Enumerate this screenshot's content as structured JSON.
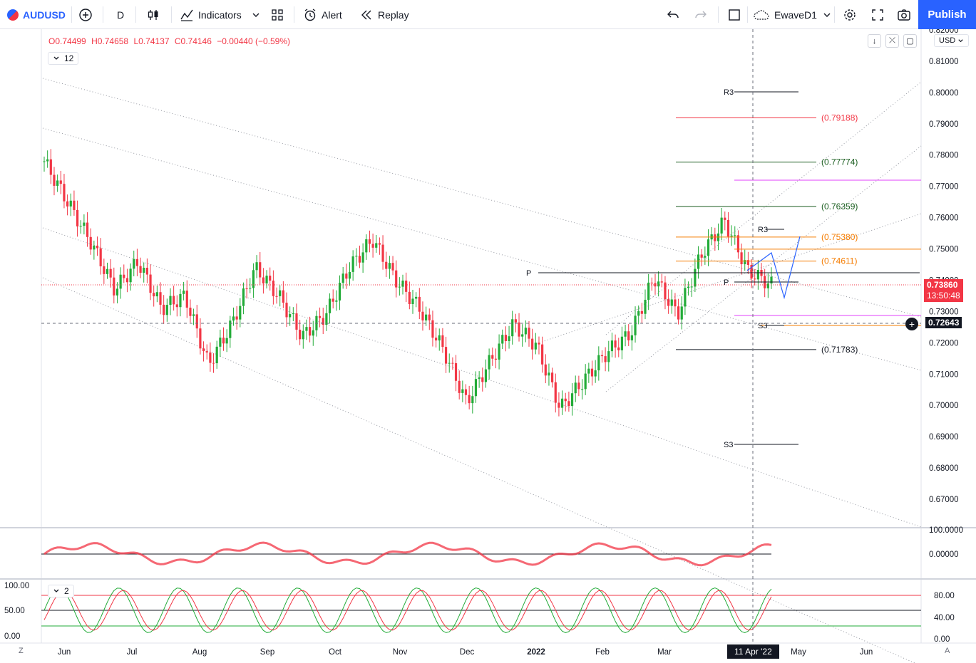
{
  "toolbar": {
    "symbol": "AUDUSD",
    "interval": "D",
    "indicators_label": "Indicators",
    "alert_label": "Alert",
    "replay_label": "Replay",
    "layout_name": "EwaveD1",
    "publish_label": "Publish"
  },
  "legend": {
    "open": "O0.74499",
    "high": "H0.74658",
    "low": "L0.74137",
    "close": "C0.74146",
    "change": "−0.00440 (−0.59%)",
    "hidden_count": "12",
    "osc_count": "2"
  },
  "price_axis": {
    "currency": "USD",
    "last_price": "0.73860",
    "countdown": "13:50:48",
    "crosshair_price": "0.72643",
    "ticks": [
      "0.82000",
      "0.81000",
      "0.80000",
      "0.79000",
      "0.78000",
      "0.77000",
      "0.76000",
      "0.75000",
      "0.74000",
      "0.73000",
      "0.72000",
      "0.71000",
      "0.70000",
      "0.69000",
      "0.68000",
      "0.67000"
    ]
  },
  "time_axis": {
    "labels": [
      "Jun",
      "Jul",
      "Aug",
      "Sep",
      "Oct",
      "Nov",
      "Dec",
      "2022",
      "Feb",
      "Mar",
      "Apr",
      "May",
      "Jun"
    ],
    "crosshair_date": "11 Apr '22",
    "left_btn": "Z",
    "right_btn": "A"
  },
  "pane2_axis": {
    "ticks": [
      "100.0000",
      "0.00000"
    ]
  },
  "pane3_axis": {
    "left_ticks": [
      "100.00",
      "50.00",
      "0.00"
    ],
    "right_ticks": [
      "80.00",
      "40.00",
      "0.00"
    ]
  },
  "annotations": {
    "r3_top": "R3",
    "fib_1": "(0.79188)",
    "fib_2": "(0.77774)",
    "fib_3": "(0.76359)",
    "fib_4": "(0.75380)",
    "fib_5": "(0.74611)",
    "fib_6": "(0.71783)",
    "pivot_p": "P",
    "pivot_p2": "P",
    "r3_small": "R3",
    "s3_small": "S3",
    "s3_bottom": "S3"
  },
  "colors": {
    "up": "#22ab38",
    "down": "#f23645",
    "accent": "#2962ff",
    "fib_red": "#f23645",
    "fib_green": "#1b5e20",
    "fib_orange": "#f57c00",
    "magenta": "#e040fb"
  },
  "chart_data": {
    "type": "candlestick",
    "symbol": "AUDUSD",
    "timeframe": "D",
    "ylim": [
      0.665,
      0.825
    ],
    "close_path": [
      {
        "x": "May 2021",
        "y": 0.778
      },
      {
        "x": "Jun 2021",
        "y": 0.765
      },
      {
        "x": "Jun 2021",
        "y": 0.752
      },
      {
        "x": "Jul 2021",
        "y": 0.737
      },
      {
        "x": "Jul 2021",
        "y": 0.746
      },
      {
        "x": "Aug 2021",
        "y": 0.731
      },
      {
        "x": "Aug 2021",
        "y": 0.735
      },
      {
        "x": "Aug 2021",
        "y": 0.713
      },
      {
        "x": "Sep 2021",
        "y": 0.726
      },
      {
        "x": "Sep 2021",
        "y": 0.744
      },
      {
        "x": "Sep 2021",
        "y": 0.735
      },
      {
        "x": "Oct 2021",
        "y": 0.722
      },
      {
        "x": "Oct 2021",
        "y": 0.729
      },
      {
        "x": "Oct 2021",
        "y": 0.744
      },
      {
        "x": "Nov 2021",
        "y": 0.753
      },
      {
        "x": "Nov 2021",
        "y": 0.74
      },
      {
        "x": "Nov 2021",
        "y": 0.731
      },
      {
        "x": "Dec 2021",
        "y": 0.718
      },
      {
        "x": "Dec 2021",
        "y": 0.701
      },
      {
        "x": "Dec 2021",
        "y": 0.714
      },
      {
        "x": "Jan 2022",
        "y": 0.726
      },
      {
        "x": "Jan 2022",
        "y": 0.719
      },
      {
        "x": "Jan 2022",
        "y": 0.699
      },
      {
        "x": "Feb 2022",
        "y": 0.708
      },
      {
        "x": "Feb 2022",
        "y": 0.717
      },
      {
        "x": "Mar 2022",
        "y": 0.723
      },
      {
        "x": "Mar 2022",
        "y": 0.741
      },
      {
        "x": "Mar 2022",
        "y": 0.729
      },
      {
        "x": "Mar 2022",
        "y": 0.748
      },
      {
        "x": "Apr 2022",
        "y": 0.759
      },
      {
        "x": "Apr 2022",
        "y": 0.743
      },
      {
        "x": "Apr 2022",
        "y": 0.7386
      }
    ],
    "levels": [
      {
        "label": "(0.79188)",
        "y": 0.79188
      },
      {
        "label": "(0.77774)",
        "y": 0.77774
      },
      {
        "label": "(0.76359)",
        "y": 0.76359
      },
      {
        "label": "(0.75380)",
        "y": 0.7538
      },
      {
        "label": "(0.74611)",
        "y": 0.74611
      },
      {
        "label": "(0.71783)",
        "y": 0.71783
      }
    ],
    "last_price": 0.7386,
    "crosshair_price": 0.72643
  }
}
